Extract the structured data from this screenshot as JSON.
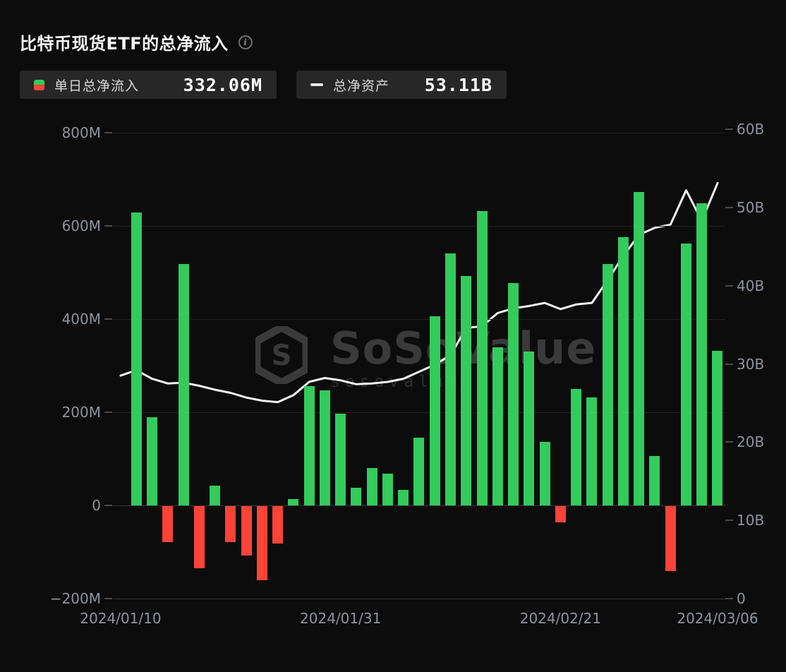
{
  "page": {
    "title": "比特币现货ETF的总净流入"
  },
  "legend": {
    "daily_flow": {
      "label": "单日总净流入",
      "value": "332.06M"
    },
    "net_assets": {
      "label": "总净资产",
      "value": "53.11B"
    }
  },
  "watermark": {
    "brand": "SoSoValue",
    "domain": "sosovalue.xyz"
  },
  "chart_data": {
    "type": "bar",
    "title": "比特币现货ETF的总净流入",
    "categories": [
      "2024/01/10",
      "2024/01/11",
      "2024/01/12",
      "2024/01/16",
      "2024/01/17",
      "2024/01/18",
      "2024/01/19",
      "2024/01/22",
      "2024/01/23",
      "2024/01/24",
      "2024/01/25",
      "2024/01/26",
      "2024/01/29",
      "2024/01/30",
      "2024/01/31",
      "2024/02/01",
      "2024/02/02",
      "2024/02/05",
      "2024/02/06",
      "2024/02/07",
      "2024/02/08",
      "2024/02/09",
      "2024/02/12",
      "2024/02/13",
      "2024/02/14",
      "2024/02/15",
      "2024/02/16",
      "2024/02/20",
      "2024/02/21",
      "2024/02/22",
      "2024/02/23",
      "2024/02/26",
      "2024/02/27",
      "2024/02/28",
      "2024/02/29",
      "2024/03/01",
      "2024/03/04",
      "2024/03/05",
      "2024/03/06"
    ],
    "series": [
      {
        "name": "单日总净流入",
        "type": "bar",
        "axis": "left",
        "unit": "M",
        "values": [
          0,
          629,
          190,
          -77,
          518,
          -133,
          42,
          -77,
          -106,
          -159,
          -80,
          14,
          256,
          247,
          197,
          38,
          80,
          68,
          34,
          145,
          406,
          541,
          493,
          632,
          339,
          477,
          330,
          136,
          -35,
          250,
          232,
          518,
          576,
          673,
          106,
          -139,
          562,
          648,
          332.06
        ]
      },
      {
        "name": "总净资产",
        "type": "line",
        "axis": "right",
        "unit": "B",
        "values": [
          28.5,
          29.2,
          28.1,
          27.5,
          27.6,
          27.2,
          26.7,
          26.3,
          25.7,
          25.3,
          25.1,
          26.0,
          27.7,
          28.2,
          27.9,
          27.4,
          27.5,
          27.7,
          28.1,
          29.0,
          29.9,
          31.1,
          34.6,
          34.8,
          36.5,
          37.1,
          37.4,
          37.8,
          37.0,
          37.6,
          37.8,
          40.7,
          43.8,
          46.5,
          47.4,
          47.8,
          52.2,
          48.3,
          53.11
        ]
      }
    ],
    "left_axis": {
      "ticks": [
        "800M",
        "600M",
        "400M",
        "200M",
        "0",
        "-200M"
      ],
      "tick_values_M": [
        800,
        600,
        400,
        200,
        0,
        -200
      ],
      "range_M": [
        -200,
        800
      ]
    },
    "right_axis": {
      "ticks": [
        "60B",
        "50B",
        "40B",
        "30B",
        "20B",
        "10B",
        "0"
      ],
      "tick_values_B": [
        60,
        50,
        40,
        30,
        20,
        10,
        0
      ],
      "range_B": [
        0,
        60
      ]
    },
    "x_ticks": [
      "2024/01/10",
      "2024/01/31",
      "2024/02/21",
      "2024/03/06"
    ],
    "x_tick_indices": [
      0,
      14,
      28,
      38
    ],
    "grid": true,
    "legend_position": "top-left",
    "colors": {
      "positive": "#33cb5c",
      "negative": "#fb4338",
      "line": "#f2f2f2"
    }
  }
}
